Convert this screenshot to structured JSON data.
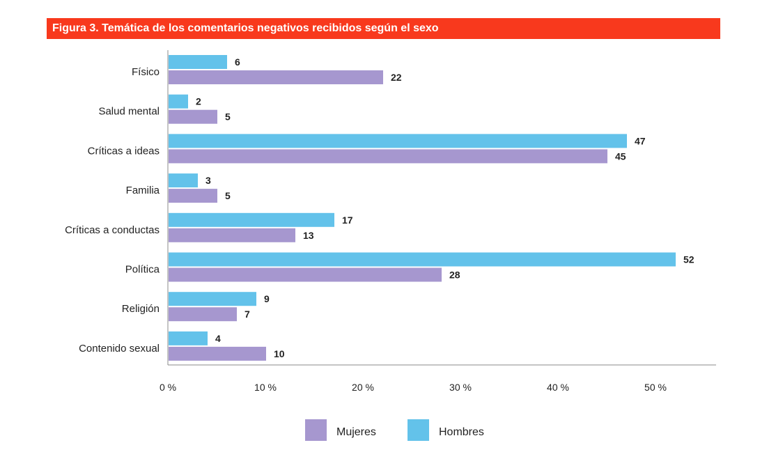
{
  "chart_data": {
    "type": "bar",
    "orientation": "horizontal",
    "title": "Figura 3. Temática de los comentarios negativos recibidos según el sexo",
    "categories": [
      "Físico",
      "Salud mental",
      "Críticas a ideas",
      "Familia",
      "Críticas a conductas",
      "Política",
      "Religión",
      "Contenido sexual"
    ],
    "series": [
      {
        "name": "Hombres",
        "color": "#63c2ea",
        "values": [
          6,
          2,
          47,
          3,
          17,
          52,
          9,
          4
        ]
      },
      {
        "name": "Mujeres",
        "color": "#a697cf",
        "values": [
          22,
          5,
          45,
          5,
          13,
          28,
          7,
          10
        ]
      }
    ],
    "x_ticks": [
      "0 %",
      "10 %",
      "20 %",
      "30 %",
      "40 %",
      "50 %"
    ],
    "xlim": [
      0,
      56
    ],
    "legend": {
      "placement": "bottom",
      "order": [
        "Mujeres",
        "Hombres"
      ]
    },
    "grid": false,
    "accent_color": "#f8391d"
  }
}
